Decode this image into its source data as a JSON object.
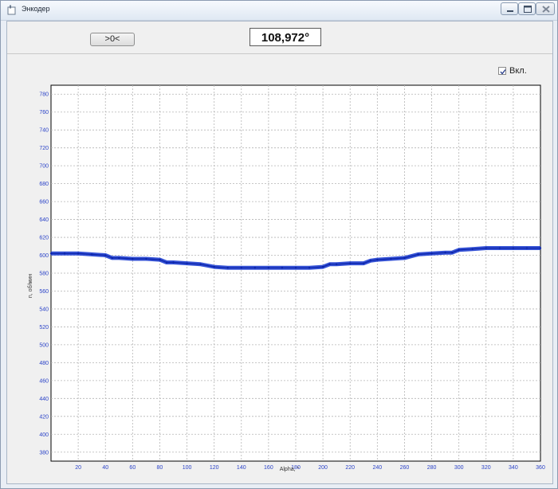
{
  "window": {
    "title": "Энкодер"
  },
  "toolbar": {
    "zero_label": ">0<",
    "angle_value": "108,972°"
  },
  "controls": {
    "enable_label": "Вкл.",
    "enable_checked": true
  },
  "icons": {
    "title": "window-icon",
    "minimize": "minimize-icon",
    "maximize": "maximize-icon",
    "close": "close-icon",
    "check": "check-icon"
  },
  "colors": {
    "series": "#1f3fd0",
    "tick_labels": "#2b43c8",
    "grid": "#b4b4b4",
    "plot_bg": "#ffffff",
    "frame_bg": "#f0f0f0"
  },
  "chart_data": {
    "type": "line",
    "title": "",
    "xlabel": "Alpha, °",
    "ylabel": "n, об/мин",
    "xlim": [
      0,
      360
    ],
    "ylim": [
      370,
      790
    ],
    "x_ticks": [
      20,
      40,
      60,
      80,
      100,
      120,
      140,
      160,
      180,
      200,
      220,
      240,
      260,
      280,
      300,
      320,
      340,
      360
    ],
    "y_ticks": [
      380,
      400,
      420,
      440,
      460,
      480,
      500,
      520,
      540,
      560,
      580,
      600,
      620,
      640,
      660,
      680,
      700,
      720,
      740,
      760,
      780
    ],
    "y_tick_labels": [
      "380",
      "400",
      "420",
      "440",
      "460",
      "480",
      "500",
      "520",
      "540",
      "560",
      "580",
      "600",
      "620",
      "640",
      "660",
      "680",
      "700",
      "720",
      "740",
      "760",
      "780"
    ],
    "grid": true,
    "legend": "none",
    "series": [
      {
        "x": [
          0,
          10,
          20,
          30,
          40,
          45,
          50,
          60,
          70,
          80,
          85,
          90,
          100,
          110,
          120,
          130,
          140,
          150,
          160,
          170,
          180,
          190,
          200,
          205,
          210,
          220,
          230,
          235,
          240,
          250,
          260,
          270,
          280,
          290,
          295,
          300,
          310,
          320,
          330,
          340,
          350,
          360
        ],
        "y": [
          602,
          602,
          602,
          601,
          600,
          597,
          597,
          596,
          596,
          595,
          592,
          592,
          591,
          590,
          587,
          586,
          586,
          586,
          586,
          586,
          586,
          586,
          587,
          590,
          590,
          591,
          591,
          594,
          595,
          596,
          597,
          601,
          602,
          603,
          603,
          606,
          607,
          608,
          608,
          608,
          608,
          608
        ]
      }
    ]
  }
}
